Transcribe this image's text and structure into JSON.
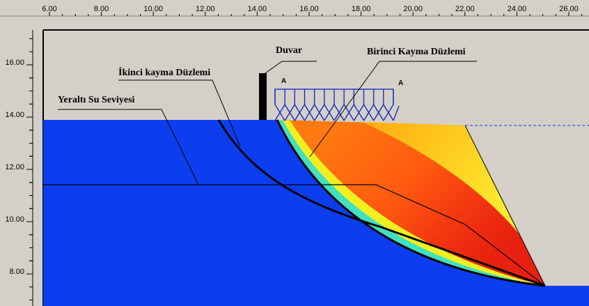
{
  "axes": {
    "x_ticks": [
      "6.00",
      "8.00",
      "10.00",
      "12.00",
      "14.00",
      "16.00",
      "18.00",
      "20.00",
      "22.00",
      "24.00",
      "26.00"
    ],
    "y_ticks": [
      "16.00",
      "14.00",
      "12.00",
      "10.00",
      "8.00"
    ]
  },
  "labels": {
    "wall": "Duvar",
    "first_slip": "Birinci Kayma Düzlemi",
    "second_slip": "İkinci kayma Düzlemi",
    "groundwater": "Yeraltı Su Seviyesi",
    "load_left": "A",
    "load_right": "A"
  }
}
